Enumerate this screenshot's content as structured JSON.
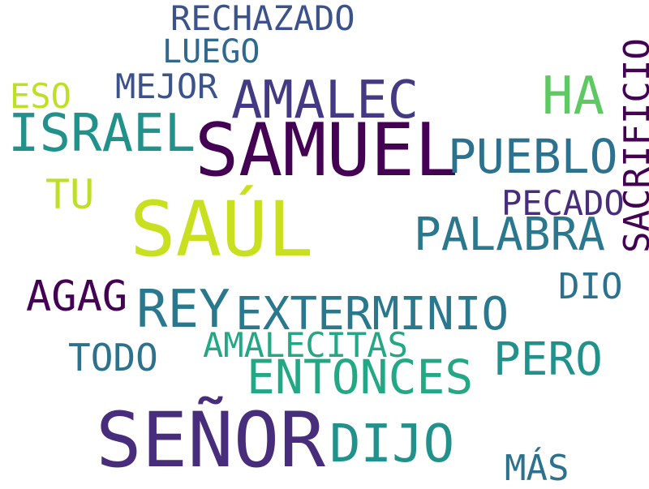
{
  "words": {
    "rechazado": "RECHAZADO",
    "luego": "LUEGO",
    "sacrificio": "SACRIFICIO",
    "eso": "ESO",
    "mejor": "MEJOR",
    "amalec": "AMALEC",
    "ha": "HA",
    "israel": "ISRAEL",
    "samuel": "SAMUEL",
    "pueblo": "PUEBLO",
    "tu": "TU",
    "pecado": "PECADO",
    "saul": "SAÚL",
    "palabra": "PALABRA",
    "dio": "DIO",
    "agag": "AGAG",
    "rey": "REY",
    "exterminio": "EXTERMINIO",
    "amalecitas": "AMALECITAS",
    "todo": "TODO",
    "pero": "PERO",
    "entonces": "ENTONCES",
    "senor": "SEÑOR",
    "dijo": "DIJO",
    "mas": "MÁS"
  },
  "palette": [
    "#440154",
    "#472d7b",
    "#443a83",
    "#3b528b",
    "#31688e",
    "#2c728e",
    "#2a788e",
    "#21918c",
    "#22a884",
    "#5ec962",
    "#bddf26",
    "#c8e020"
  ]
}
